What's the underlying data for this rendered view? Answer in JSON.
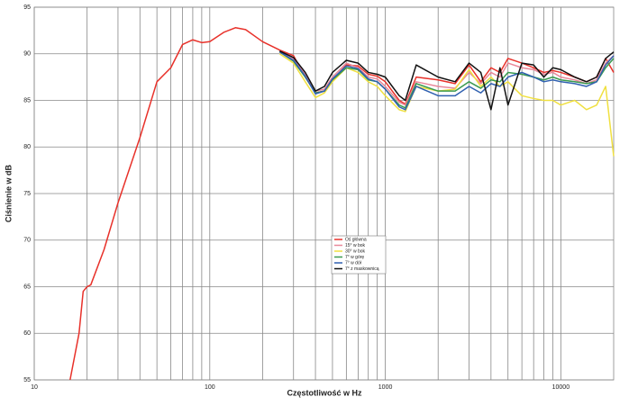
{
  "chart_data": {
    "type": "line",
    "xlabel": "Częstotliwość w Hz",
    "ylabel": "Ciśnienie w dB",
    "xscale": "log",
    "grid": true,
    "legend": "center",
    "xlim": [
      10,
      20000
    ],
    "ylim": [
      55,
      95
    ],
    "xticks": [
      10,
      100,
      1000,
      10000
    ],
    "x_minor_grid": [
      20,
      30,
      40,
      50,
      60,
      70,
      80,
      90,
      200,
      300,
      400,
      500,
      600,
      700,
      800,
      900,
      2000,
      3000,
      4000,
      5000,
      6000,
      7000,
      8000,
      9000
    ],
    "yticks": [
      55,
      60,
      65,
      70,
      75,
      80,
      85,
      90,
      95
    ],
    "x": [
      16,
      18,
      19,
      20,
      21,
      25,
      30,
      40,
      50,
      60,
      70,
      80,
      90,
      100,
      120,
      140,
      160,
      200,
      250,
      300,
      350,
      400,
      450,
      500,
      600,
      700,
      800,
      900,
      1000,
      1200,
      1300,
      1500,
      2000,
      2500,
      3000,
      3500,
      4000,
      4500,
      5000,
      6000,
      7000,
      8000,
      9000,
      10000,
      12000,
      14000,
      16000,
      18000,
      20000
    ],
    "series": [
      {
        "name": "Oś główna",
        "color": "#e8312a",
        "values": [
          55,
          60,
          64.5,
          65,
          65.2,
          69,
          74,
          81,
          87,
          88.5,
          91,
          91.5,
          91.2,
          91.3,
          92.3,
          92.8,
          92.6,
          91.3,
          90.4,
          89.8,
          87.5,
          85.8,
          86,
          87.2,
          88.8,
          88.7,
          87.8,
          87.6,
          87,
          85,
          84.6,
          87.5,
          87.2,
          86.8,
          88.8,
          87,
          88.5,
          88,
          89.5,
          89,
          88.5,
          88,
          88.2,
          88,
          87.5,
          87,
          87.5,
          89.5,
          88
        ]
      },
      {
        "name": "15° w bok",
        "color": "#e8889a",
        "values": [
          null,
          null,
          null,
          null,
          null,
          null,
          null,
          null,
          null,
          null,
          null,
          null,
          null,
          null,
          null,
          null,
          null,
          null,
          90.3,
          89.5,
          87.8,
          86,
          86.2,
          87.5,
          89,
          88.5,
          87.5,
          87.3,
          86.5,
          84.8,
          84.5,
          87,
          86.5,
          86.3,
          88,
          86.8,
          88,
          87.5,
          89,
          88.5,
          88.3,
          87.8,
          88,
          87.5,
          87.2,
          86.8,
          87.2,
          89,
          89.8
        ]
      },
      {
        "name": "30° w bok",
        "color": "#f0e040",
        "values": [
          null,
          null,
          null,
          null,
          null,
          null,
          null,
          null,
          null,
          null,
          null,
          null,
          null,
          null,
          null,
          null,
          null,
          null,
          90,
          89,
          87,
          85.3,
          85.8,
          87,
          88.5,
          88,
          87,
          86.5,
          85.5,
          84,
          83.8,
          86.5,
          86,
          86.2,
          88.3,
          86.5,
          87.5,
          86.5,
          87,
          85.5,
          85.2,
          85,
          85,
          84.5,
          85,
          84,
          84.5,
          86.5,
          79
        ]
      },
      {
        "name": "7° w górę",
        "color": "#3a9a50",
        "values": [
          null,
          null,
          null,
          null,
          null,
          null,
          null,
          null,
          null,
          null,
          null,
          null,
          null,
          null,
          null,
          null,
          null,
          null,
          90.2,
          89.2,
          87.5,
          85.8,
          86,
          87.2,
          88.5,
          88.3,
          87.2,
          87,
          86.2,
          84.5,
          84.2,
          86.8,
          86,
          86,
          87,
          86.3,
          87.2,
          87,
          88,
          87.8,
          87.5,
          87.2,
          87.5,
          87.2,
          87,
          86.8,
          87,
          88.5,
          89.5
        ]
      },
      {
        "name": "7° w dół",
        "color": "#3060b0",
        "values": [
          null,
          null,
          null,
          null,
          null,
          null,
          null,
          null,
          null,
          null,
          null,
          null,
          null,
          null,
          null,
          null,
          null,
          null,
          90.2,
          89.3,
          87.6,
          85.7,
          86,
          87.3,
          88.7,
          88.4,
          87.3,
          87,
          86.2,
          84.3,
          84,
          86.5,
          85.5,
          85.5,
          86.5,
          85.8,
          86.8,
          86.5,
          87.5,
          88,
          87.5,
          87,
          87.2,
          87,
          86.8,
          86.5,
          87,
          88.8,
          89.8
        ]
      },
      {
        "name": "7° z maskownicą",
        "color": "#111111",
        "values": [
          null,
          null,
          null,
          null,
          null,
          null,
          null,
          null,
          null,
          null,
          null,
          null,
          null,
          null,
          null,
          null,
          null,
          null,
          90.3,
          89.6,
          88,
          86,
          86.5,
          88,
          89.3,
          89,
          88,
          87.8,
          87.5,
          85.5,
          85,
          88.8,
          87.5,
          87,
          89,
          88,
          84,
          88.5,
          84.5,
          89,
          88.8,
          87.5,
          88.5,
          88.3,
          87.5,
          87,
          87.5,
          89.5,
          90.2
        ]
      }
    ]
  }
}
